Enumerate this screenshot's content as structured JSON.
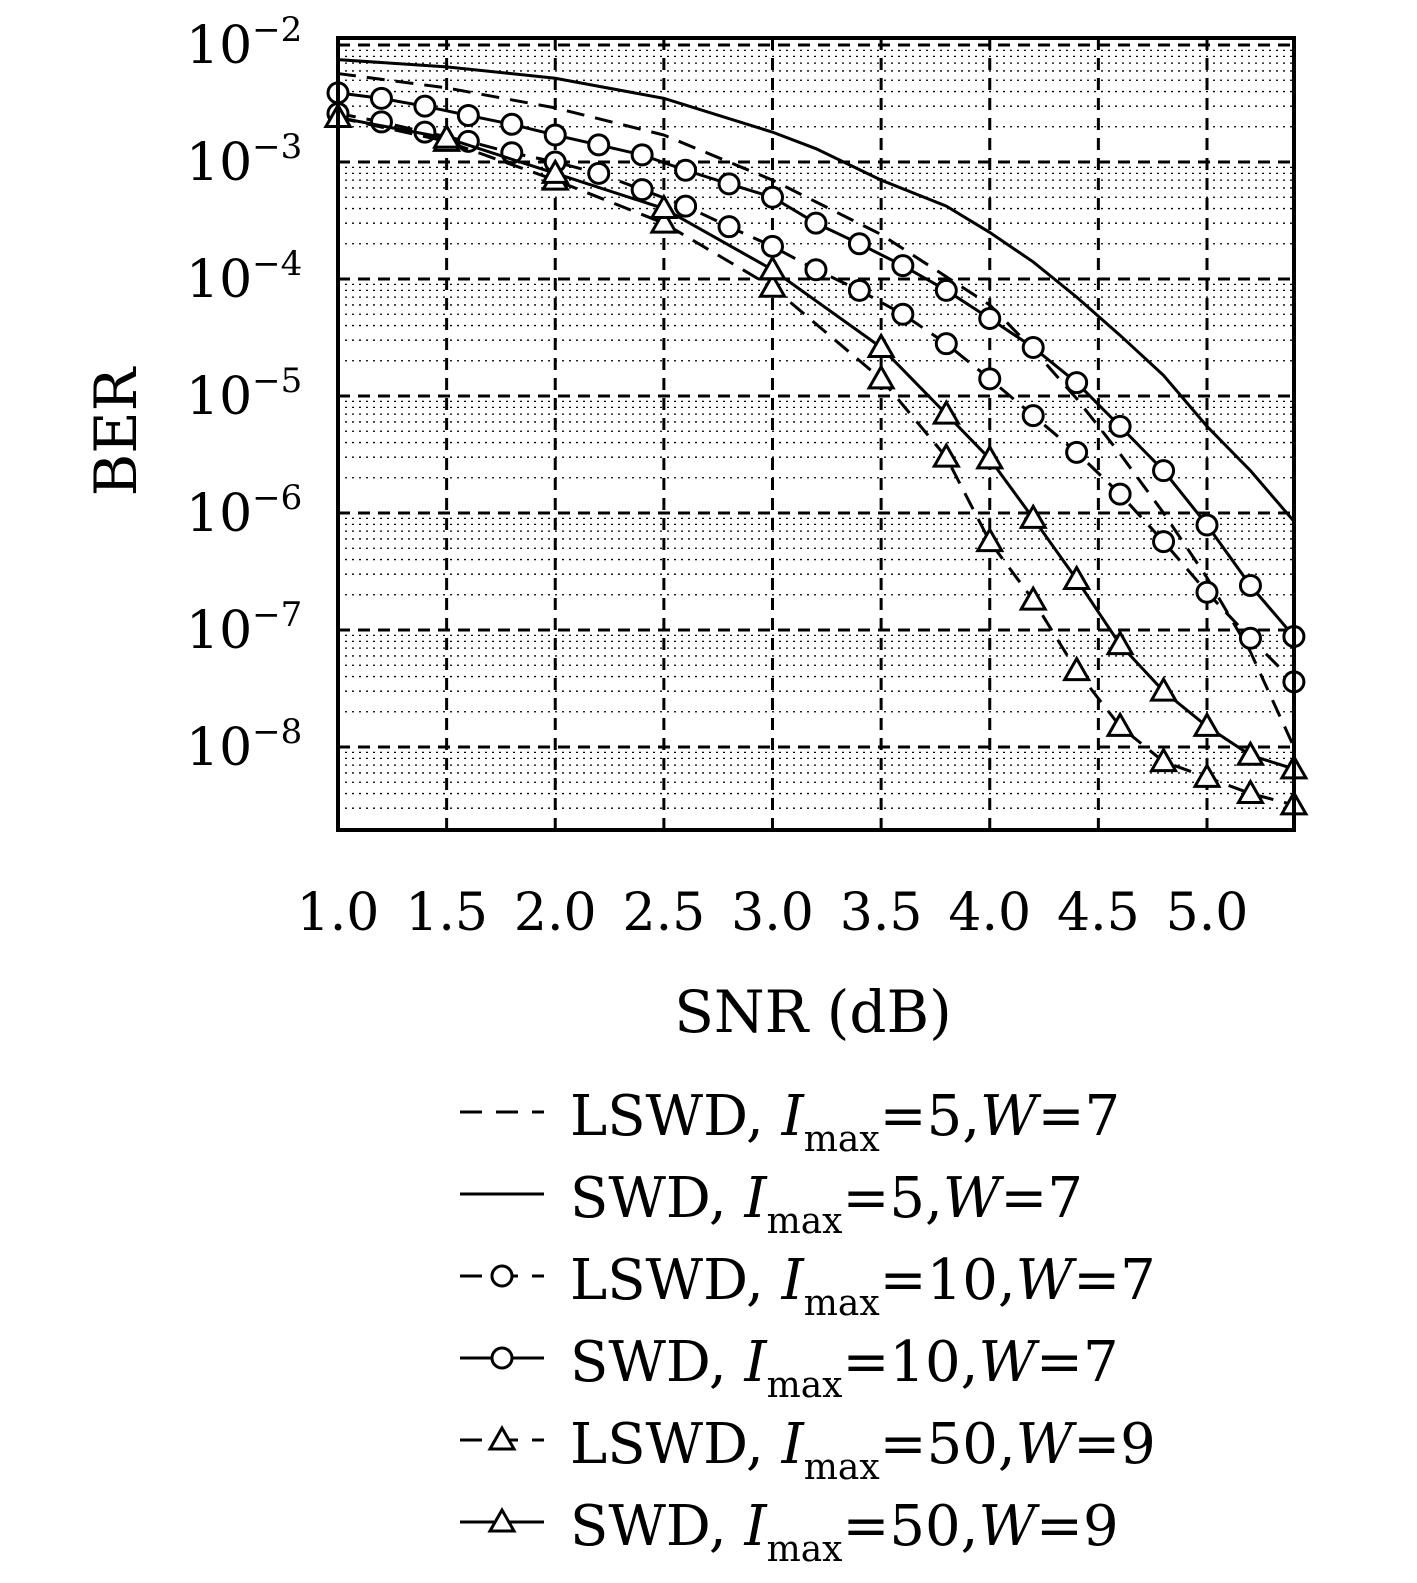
{
  "chart_data": {
    "type": "line",
    "xlabel": "SNR (dB)",
    "ylabel": "BER",
    "xlim": [
      1.0,
      5.4
    ],
    "ylim": [
      3e-09,
      0.01
    ],
    "yscale": "log",
    "grid": true,
    "legend_position": "below",
    "x_ticks": [
      "1.0",
      "1.5",
      "2.0",
      "2.5",
      "3.0",
      "3.5",
      "4.0",
      "4.5",
      "5.0"
    ],
    "y_ticks": [
      {
        "base": "10",
        "exp": "−2"
      },
      {
        "base": "10",
        "exp": "−3"
      },
      {
        "base": "10",
        "exp": "−4"
      },
      {
        "base": "10",
        "exp": "−5"
      },
      {
        "base": "10",
        "exp": "−6"
      },
      {
        "base": "10",
        "exp": "−7"
      },
      {
        "base": "10",
        "exp": "−8"
      }
    ],
    "series": [
      {
        "name": "LSWD, Imax=5, W=7",
        "label": {
          "prefix": "LSWD, ",
          "sub": "max",
          "value": "=5,",
          "w": "W",
          "wval": "=7"
        },
        "line": "dashed",
        "marker": "none",
        "x": [
          1.0,
          1.5,
          2.0,
          2.5,
          3.0,
          3.5,
          4.0,
          4.2,
          4.4,
          4.6,
          4.8,
          5.0,
          5.2,
          5.4
        ],
        "y": [
          0.0057,
          0.0043,
          0.0029,
          0.0017,
          0.0007,
          0.00024,
          6e-05,
          2.5e-05,
          9.5e-06,
          3.2e-06,
          1e-06,
          2.8e-07,
          6.5e-08,
          1e-08
        ]
      },
      {
        "name": "SWD, Imax=5, W=7",
        "label": {
          "prefix": "SWD, ",
          "sub": "max",
          "value": "=5,",
          "w": "W",
          "wval": "=7"
        },
        "line": "solid",
        "marker": "none",
        "x": [
          1.0,
          1.5,
          2.0,
          2.5,
          3.0,
          3.2,
          3.5,
          3.8,
          4.0,
          4.2,
          4.4,
          4.6,
          4.8,
          5.0,
          5.2,
          5.4
        ],
        "y": [
          0.0075,
          0.0065,
          0.0052,
          0.0035,
          0.0018,
          0.0013,
          0.0007,
          0.00042,
          0.00025,
          0.00014,
          7e-05,
          3.3e-05,
          1.5e-05,
          5.5e-06,
          2.3e-06,
          8.5e-07
        ]
      },
      {
        "name": "LSWD, Imax=10, W=7",
        "label": {
          "prefix": "LSWD, ",
          "sub": "max",
          "value": "=10,",
          "w": "W",
          "wval": "=7"
        },
        "line": "dashed",
        "marker": "circle",
        "x": [
          1.0,
          1.2,
          1.4,
          1.6,
          1.8,
          2.0,
          2.2,
          2.4,
          2.6,
          2.8,
          3.0,
          3.2,
          3.4,
          3.6,
          3.8,
          4.0,
          4.2,
          4.4,
          4.6,
          4.8,
          5.0,
          5.2,
          5.4
        ],
        "y": [
          0.0026,
          0.0022,
          0.0018,
          0.0015,
          0.0012,
          0.001,
          0.0008,
          0.00058,
          0.00042,
          0.00028,
          0.00019,
          0.00012,
          8e-05,
          5e-05,
          2.8e-05,
          1.4e-05,
          6.8e-06,
          3.3e-06,
          1.45e-06,
          5.7e-07,
          2.1e-07,
          8.5e-08,
          3.6e-08
        ]
      },
      {
        "name": "SWD, Imax=10, W=7",
        "label": {
          "prefix": "SWD, ",
          "sub": "max",
          "value": "=10,",
          "w": "W",
          "wval": "=7"
        },
        "line": "solid",
        "marker": "circle",
        "x": [
          1.0,
          1.2,
          1.4,
          1.6,
          1.8,
          2.0,
          2.2,
          2.4,
          2.6,
          2.8,
          3.0,
          3.2,
          3.4,
          3.6,
          3.8,
          4.0,
          4.2,
          4.4,
          4.6,
          4.8,
          5.0,
          5.2,
          5.4
        ],
        "y": [
          0.0039,
          0.0035,
          0.003,
          0.0025,
          0.0021,
          0.0017,
          0.0014,
          0.00115,
          0.00085,
          0.00065,
          0.0005,
          0.0003,
          0.0002,
          0.00013,
          8e-05,
          4.6e-05,
          2.6e-05,
          1.3e-05,
          5.5e-06,
          2.3e-06,
          7.9e-07,
          2.4e-07,
          8.8e-08
        ]
      },
      {
        "name": "LSWD, Imax=50, W=9",
        "label": {
          "prefix": "LSWD, ",
          "sub": "max",
          "value": "=50,",
          "w": "W",
          "wval": "=9"
        },
        "line": "dashed",
        "marker": "triangle",
        "x": [
          1.0,
          1.5,
          2.0,
          2.5,
          3.0,
          3.5,
          3.8,
          4.0,
          4.2,
          4.4,
          4.6,
          4.8,
          5.0,
          5.2,
          5.4
        ],
        "y": [
          0.0024,
          0.0015,
          0.0007,
          0.0003,
          8.5e-05,
          1.4e-05,
          3e-06,
          5.7e-07,
          1.8e-07,
          4.5e-08,
          1.5e-08,
          7.5e-09,
          5.5e-09,
          4e-09,
          3.2e-09
        ]
      },
      {
        "name": "SWD, Imax=50, W=9",
        "label": {
          "prefix": "SWD, ",
          "sub": "max",
          "value": "=50,",
          "w": "W",
          "wval": "=9"
        },
        "line": "solid",
        "marker": "triangle",
        "x": [
          1.0,
          1.5,
          2.0,
          2.5,
          3.0,
          3.5,
          3.8,
          4.0,
          4.2,
          4.4,
          4.6,
          4.8,
          5.0,
          5.2,
          5.4
        ],
        "y": [
          0.0024,
          0.0016,
          0.0008,
          0.0004,
          0.00012,
          2.6e-05,
          7e-06,
          2.9e-06,
          9e-07,
          2.7e-07,
          7.5e-08,
          3e-08,
          1.5e-08,
          8.5e-09,
          6.5e-09
        ]
      }
    ]
  }
}
